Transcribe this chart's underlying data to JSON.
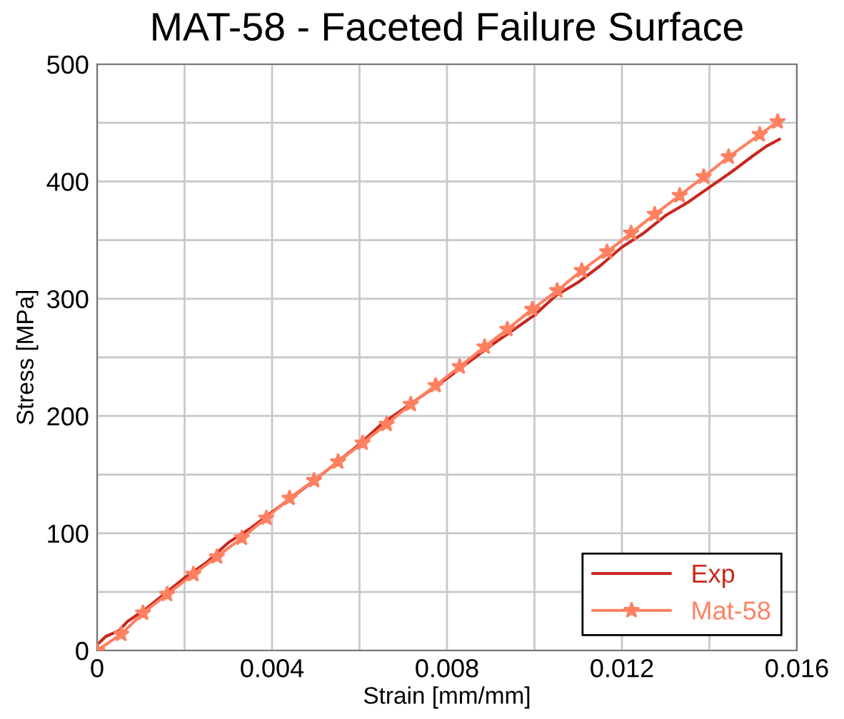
{
  "chart_data": {
    "type": "line",
    "title": "MAT-58 - Faceted Failure Surface",
    "xlabel": "Strain [mm/mm]",
    "ylabel": "Stress [MPa]",
    "xlim": [
      0,
      0.016
    ],
    "ylim": [
      0,
      500
    ],
    "xticks": [
      0,
      {
        "value": 0.002,
        "label": null
      },
      0.004,
      {
        "value": 0.006,
        "label": null
      },
      0.008,
      {
        "value": 0.01,
        "label": null
      },
      0.012,
      {
        "value": 0.014,
        "label": null
      },
      0.016
    ],
    "yticks": [
      0,
      {
        "value": 50,
        "label": null
      },
      100,
      {
        "value": 150,
        "label": null
      },
      200,
      {
        "value": 250,
        "label": null
      },
      300,
      {
        "value": 350,
        "label": null
      },
      400,
      {
        "value": 450,
        "label": null
      },
      500
    ],
    "grid": true,
    "legend": "bottom right",
    "series": [
      {
        "name": "Exp",
        "color": "#c8281e",
        "marker": "none",
        "x": [
          0,
          0.0002,
          0.0005,
          0.0007,
          0.0011,
          0.0015,
          0.002,
          0.0025,
          0.003,
          0.0035,
          0.004,
          0.0045,
          0.005,
          0.0055,
          0.006,
          0.0065,
          0.007,
          0.0075,
          0.008,
          0.0085,
          0.009,
          0.0095,
          0.01,
          0.0105,
          0.011,
          0.0115,
          0.012,
          0.0125,
          0.013,
          0.0135,
          0.014,
          0.0145,
          0.015,
          0.0153,
          0.0156
        ],
        "values": [
          5,
          12,
          17,
          25,
          35,
          47,
          62,
          75,
          92,
          104,
          118,
          132,
          146,
          161,
          176,
          193,
          206,
          219,
          232,
          246,
          260,
          273,
          286,
          303,
          314,
          328,
          344,
          356,
          371,
          382,
          395,
          408,
          422,
          430,
          436
        ]
      },
      {
        "name": "Mat-58",
        "color": "#ff8060",
        "marker": "star",
        "x": [
          0,
          0.00055,
          0.00105,
          0.0016,
          0.0022,
          0.00274,
          0.00331,
          0.00387,
          0.0044,
          0.00496,
          0.00551,
          0.00607,
          0.00662,
          0.00717,
          0.00774,
          0.00829,
          0.00886,
          0.00938,
          0.00995,
          0.01052,
          0.01108,
          0.01166,
          0.01221,
          0.01275,
          0.01332,
          0.01387,
          0.01444,
          0.01515,
          0.01556
        ],
        "values": [
          0,
          14,
          32,
          48,
          65,
          80,
          96,
          113,
          130,
          145,
          161,
          177,
          193,
          210,
          226,
          242,
          259,
          274,
          291,
          307,
          324,
          340,
          356,
          372,
          388,
          404,
          421,
          440,
          451
        ]
      }
    ]
  }
}
